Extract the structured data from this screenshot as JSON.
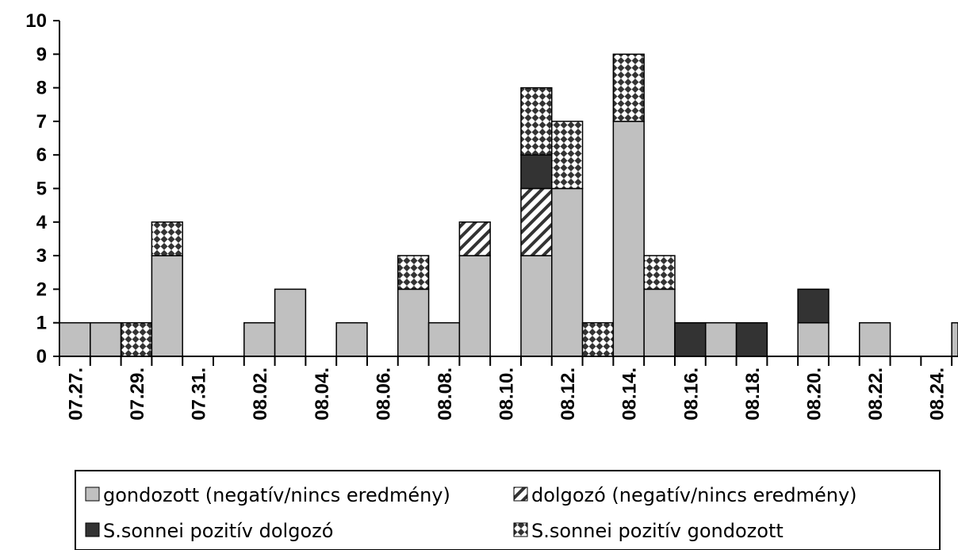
{
  "chart_data": {
    "type": "bar",
    "stacked": true,
    "x": [
      "07.27.",
      "07.28.",
      "07.29.",
      "07.30.",
      "07.31.",
      "08.01.",
      "08.02.",
      "08.03.",
      "08.04.",
      "08.05.",
      "08.06.",
      "08.07.",
      "08.08.",
      "08.09.",
      "08.10.",
      "08.11.",
      "08.12.",
      "08.13.",
      "08.14.",
      "08.15.",
      "08.16.",
      "08.17.",
      "08.18.",
      "08.19.",
      "08.20.",
      "08.21.",
      "08.22.",
      "08.23.",
      "08.24.",
      "08.25."
    ],
    "xticks_shown": [
      "07.27.",
      "07.29.",
      "07.31.",
      "08.02.",
      "08.04.",
      "08.06.",
      "08.08.",
      "08.10.",
      "08.12.",
      "08.14.",
      "08.16.",
      "08.18.",
      "08.20.",
      "08.22.",
      "08.24."
    ],
    "yticks": [
      "0",
      "1",
      "2",
      "3",
      "4",
      "5",
      "6",
      "7",
      "8",
      "9",
      "10"
    ],
    "ylim": [
      0,
      10
    ],
    "series": [
      {
        "name": "gondozott (negatív/nincs eredmény)",
        "color": "#c0c0c0",
        "pattern": "solid-gray",
        "values": [
          1,
          1,
          0,
          3,
          0,
          0,
          1,
          2,
          0,
          1,
          0,
          2,
          1,
          3,
          0,
          3,
          5,
          0,
          7,
          2,
          0,
          1,
          0,
          0,
          1,
          0,
          1,
          0,
          0,
          1
        ]
      },
      {
        "name": "dolgozó (negatív/nincs eredmény)",
        "color": "#ffffff",
        "pattern": "diagonal-stripes",
        "values": [
          0,
          0,
          0,
          0,
          0,
          0,
          0,
          0,
          0,
          0,
          0,
          0,
          0,
          1,
          0,
          2,
          0,
          0,
          0,
          0,
          0,
          0,
          0,
          0,
          0,
          0,
          0,
          0,
          0,
          0
        ]
      },
      {
        "name": "S.sonnei pozitív dolgozó",
        "color": "#333333",
        "pattern": "solid-dark",
        "values": [
          0,
          0,
          0,
          0,
          0,
          0,
          0,
          0,
          0,
          0,
          0,
          0,
          0,
          0,
          0,
          1,
          0,
          0,
          0,
          0,
          1,
          0,
          1,
          0,
          1,
          0,
          0,
          0,
          0,
          0
        ]
      },
      {
        "name": "S.sonnei pozitív gondozott",
        "color": "#ffffff",
        "pattern": "checker",
        "values": [
          0,
          0,
          1,
          1,
          0,
          0,
          0,
          0,
          0,
          0,
          0,
          1,
          0,
          0,
          0,
          2,
          2,
          1,
          2,
          1,
          0,
          0,
          0,
          0,
          0,
          0,
          0,
          0,
          0,
          0
        ]
      }
    ],
    "legend": {
      "placement": "bottom",
      "entries": [
        "gondozott (negatív/nincs eredmény)",
        "dolgozó (negatív/nincs eredmény)",
        "S.sonnei pozitív dolgozó",
        "S.sonnei pozitív gondozott"
      ]
    }
  }
}
